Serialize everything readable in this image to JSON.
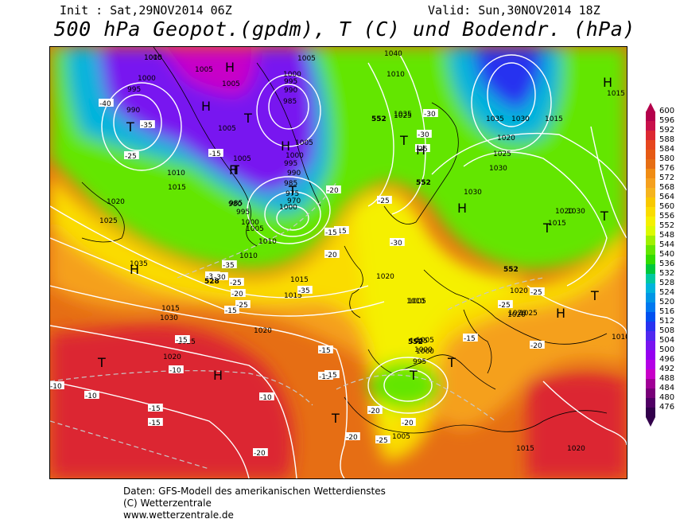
{
  "header": {
    "init_text": "Init : Sat,29NOV2014 06Z",
    "valid_text": "Valid: Sun,30NOV2014 18Z",
    "title": "500 hPa Geopot.(gpdm), T (C) und Bodendr. (hPa)"
  },
  "legend": {
    "levels": [
      "600",
      "596",
      "592",
      "588",
      "584",
      "580",
      "576",
      "572",
      "568",
      "564",
      "560",
      "556",
      "552",
      "548",
      "544",
      "540",
      "536",
      "532",
      "528",
      "524",
      "520",
      "516",
      "512",
      "508",
      "504",
      "500",
      "496",
      "492",
      "488",
      "484",
      "480",
      "476"
    ],
    "colors": [
      "#b4004b",
      "#c8104b",
      "#dc2832",
      "#e6461e",
      "#e65a14",
      "#e66e14",
      "#f08c14",
      "#f5a01e",
      "#f5b41e",
      "#f8c800",
      "#fadc00",
      "#f5f000",
      "#dcfa00",
      "#a0f000",
      "#64e600",
      "#32dc00",
      "#00c83c",
      "#00c8a0",
      "#00b4dc",
      "#0096e6",
      "#0078f0",
      "#0050f0",
      "#2832f0",
      "#5028f0",
      "#7814f0",
      "#9600f0",
      "#b400e6",
      "#c800c8",
      "#a00096",
      "#780078",
      "#500064",
      "#32004b"
    ]
  },
  "map": {
    "pressure_labels": [
      "1005",
      "1005",
      "1000",
      "995",
      "990",
      "1005",
      "1000",
      "995",
      "990",
      "985",
      "1000",
      "1005",
      "1005",
      "1010",
      "1015",
      "1020",
      "1025",
      "1035",
      "1030",
      "1025",
      "1020",
      "1020",
      "1010",
      "1015",
      "1005",
      "1005",
      "1000",
      "995",
      "990",
      "985",
      "975",
      "970",
      "980",
      "995",
      "1000",
      "1005",
      "1010",
      "1015",
      "1005",
      "1000",
      "995",
      "985",
      "1005",
      "1020",
      "1035",
      "1030",
      "1040",
      "1010",
      "1015",
      "1020",
      "1025",
      "1030",
      "1035",
      "1015",
      "1010",
      "1005",
      "1000",
      "1015",
      "1020",
      "1025",
      "1030",
      "1030",
      "1020",
      "1020",
      "1015",
      "1010",
      "1020",
      "1015",
      "1025",
      "1020",
      "1005",
      "1010"
    ],
    "temperature_labels": [
      "-40",
      "-35",
      "-25",
      "-15",
      "-35",
      "-30",
      "-20",
      "-25",
      "-15",
      "-35",
      "-30",
      "-25",
      "-30",
      "-25",
      "-20",
      "-25",
      "-15",
      "-20",
      "-15",
      "-10",
      "-10",
      "-15",
      "-15",
      "-15",
      "-10",
      "-15",
      "-20",
      "-20",
      "-15",
      "-20",
      "-25",
      "-25",
      "-10",
      "-15",
      "-20",
      "-30",
      "-30",
      "-25",
      "-20",
      "-15",
      "-10"
    ],
    "geopotential_labels": [
      "552",
      "552",
      "528",
      "552",
      "552"
    ],
    "highs": [
      "H",
      "H",
      "H",
      "H",
      "H",
      "H",
      "H",
      "H",
      "H",
      "H"
    ],
    "lows": [
      "T",
      "T",
      "T",
      "T",
      "T",
      "T",
      "T",
      "T",
      "T",
      "T",
      "T",
      "T"
    ]
  },
  "footer": {
    "line1": "Daten: GFS-Modell des amerikanischen Wetterdienstes",
    "line2": "(C) Wetterzentrale",
    "line3": "www.wetterzentrale.de"
  }
}
